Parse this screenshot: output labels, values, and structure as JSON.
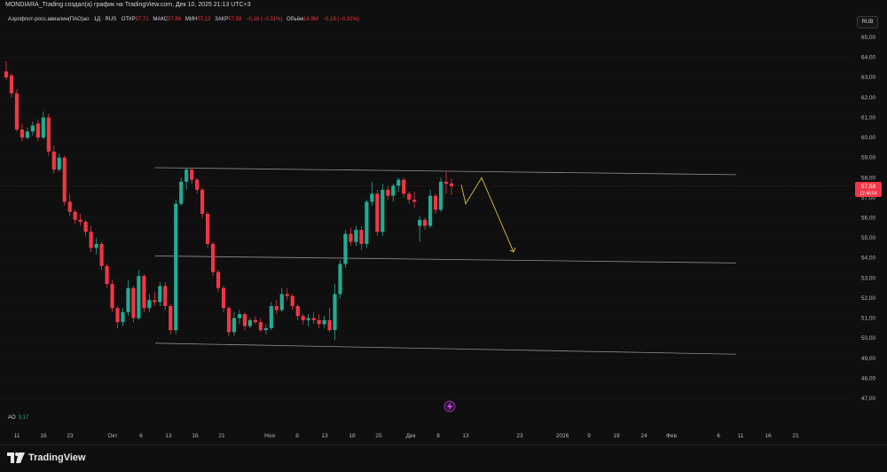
{
  "header": {
    "author_line": "MONDIARA_Trading создал(а) график на TradingView.com, Дек 10, 2025 21:13 UTC+3"
  },
  "legend": {
    "symbol": "Аэрофлот-росс.авиалин(ПАО)ао · 1Д · RUS",
    "open_label": "ОТКР",
    "open_value": "57,71",
    "high_label": "МАКС",
    "high_value": "57,96",
    "low_label": "МИН",
    "low_value": "57,13",
    "close_label": "ЗАКР",
    "close_value": "57,58",
    "change_value": "−0,18 (−0,31%)",
    "volume_label": "Объём",
    "volume_value": "14,9M",
    "volume_change": "−0,18 (−0,31%)"
  },
  "currency": "RUB",
  "indicator": {
    "name": "AO",
    "value": "3,17"
  },
  "brand": {
    "name": "TradingView"
  },
  "colors": {
    "up": "#22ab94",
    "down": "#f23645",
    "line": "#8f8f8f",
    "arrow": "#c9b43a",
    "price_tag": "#f23645"
  },
  "chart_data": {
    "type": "candlestick",
    "y_axis": {
      "ticks": [
        "65,00",
        "64,00",
        "63,00",
        "62,00",
        "61,00",
        "60,00",
        "59,00",
        "58,00",
        "57,00",
        "56,00",
        "55,00",
        "54,00",
        "53,00",
        "52,00",
        "51,00",
        "50,00",
        "49,00",
        "48,00",
        "47,00"
      ],
      "range": [
        46.4,
        65.5
      ]
    },
    "x_axis": {
      "ticks": [
        "11",
        "16",
        "23",
        "Окт",
        "6",
        "13",
        "16",
        "21",
        "Ноя",
        "8",
        "13",
        "18",
        "25",
        "Дек",
        "8",
        "13",
        "23",
        "2026",
        "9",
        "19",
        "24",
        "Фев",
        "6",
        "11",
        "16",
        "21"
      ]
    },
    "last_price": {
      "value": "57,58",
      "countdown": "12:46:54"
    },
    "candles": [
      {
        "o": 63.3,
        "h": 63.8,
        "l": 62.9,
        "c": 63.0
      },
      {
        "o": 63.1,
        "h": 63.2,
        "l": 62.0,
        "c": 62.2
      },
      {
        "o": 62.2,
        "h": 62.4,
        "l": 60.3,
        "c": 60.4
      },
      {
        "o": 60.4,
        "h": 60.7,
        "l": 59.8,
        "c": 60.0
      },
      {
        "o": 60.0,
        "h": 60.5,
        "l": 59.9,
        "c": 60.3
      },
      {
        "o": 60.3,
        "h": 60.8,
        "l": 60.1,
        "c": 60.6
      },
      {
        "o": 60.7,
        "h": 60.9,
        "l": 59.8,
        "c": 60.0
      },
      {
        "o": 60.0,
        "h": 61.3,
        "l": 59.9,
        "c": 61.0
      },
      {
        "o": 61.0,
        "h": 61.2,
        "l": 59.1,
        "c": 59.3
      },
      {
        "o": 59.3,
        "h": 59.6,
        "l": 58.2,
        "c": 58.4
      },
      {
        "o": 58.4,
        "h": 59.2,
        "l": 58.3,
        "c": 59.0
      },
      {
        "o": 59.0,
        "h": 59.1,
        "l": 56.6,
        "c": 56.8
      },
      {
        "o": 56.8,
        "h": 57.2,
        "l": 56.1,
        "c": 56.3
      },
      {
        "o": 56.3,
        "h": 56.4,
        "l": 55.7,
        "c": 55.9
      },
      {
        "o": 55.9,
        "h": 56.2,
        "l": 55.6,
        "c": 55.8
      },
      {
        "o": 55.8,
        "h": 55.9,
        "l": 55.1,
        "c": 55.3
      },
      {
        "o": 55.3,
        "h": 55.6,
        "l": 54.3,
        "c": 54.5
      },
      {
        "o": 54.5,
        "h": 55.0,
        "l": 54.2,
        "c": 54.7
      },
      {
        "o": 54.7,
        "h": 54.8,
        "l": 53.4,
        "c": 53.6
      },
      {
        "o": 53.6,
        "h": 53.7,
        "l": 52.5,
        "c": 52.7
      },
      {
        "o": 52.7,
        "h": 52.9,
        "l": 51.3,
        "c": 51.5
      },
      {
        "o": 51.5,
        "h": 51.6,
        "l": 50.5,
        "c": 50.8
      },
      {
        "o": 50.8,
        "h": 51.5,
        "l": 50.6,
        "c": 51.3
      },
      {
        "o": 51.3,
        "h": 52.9,
        "l": 51.1,
        "c": 52.5
      },
      {
        "o": 52.5,
        "h": 52.6,
        "l": 50.8,
        "c": 51.0
      },
      {
        "o": 51.0,
        "h": 53.4,
        "l": 50.9,
        "c": 53.1
      },
      {
        "o": 53.1,
        "h": 53.2,
        "l": 51.3,
        "c": 51.5
      },
      {
        "o": 51.5,
        "h": 52.2,
        "l": 51.3,
        "c": 51.9
      },
      {
        "o": 51.9,
        "h": 52.3,
        "l": 51.6,
        "c": 51.8
      },
      {
        "o": 51.8,
        "h": 52.8,
        "l": 51.6,
        "c": 52.6
      },
      {
        "o": 52.6,
        "h": 52.8,
        "l": 51.4,
        "c": 51.6
      },
      {
        "o": 51.6,
        "h": 51.7,
        "l": 50.2,
        "c": 50.4
      },
      {
        "o": 50.4,
        "h": 56.9,
        "l": 50.2,
        "c": 56.7
      },
      {
        "o": 56.7,
        "h": 58.0,
        "l": 56.6,
        "c": 57.8
      },
      {
        "o": 57.8,
        "h": 58.5,
        "l": 57.4,
        "c": 58.4
      },
      {
        "o": 58.4,
        "h": 58.5,
        "l": 57.7,
        "c": 57.9
      },
      {
        "o": 57.9,
        "h": 58.0,
        "l": 57.2,
        "c": 57.4
      },
      {
        "o": 57.4,
        "h": 57.5,
        "l": 56.0,
        "c": 56.2
      },
      {
        "o": 56.2,
        "h": 56.3,
        "l": 54.5,
        "c": 54.7
      },
      {
        "o": 54.7,
        "h": 54.8,
        "l": 53.1,
        "c": 53.3
      },
      {
        "o": 53.3,
        "h": 53.4,
        "l": 52.3,
        "c": 52.5
      },
      {
        "o": 52.5,
        "h": 52.6,
        "l": 51.3,
        "c": 51.5
      },
      {
        "o": 51.5,
        "h": 51.6,
        "l": 50.1,
        "c": 50.3
      },
      {
        "o": 50.3,
        "h": 51.3,
        "l": 50.1,
        "c": 51.0
      },
      {
        "o": 51.0,
        "h": 51.4,
        "l": 50.7,
        "c": 51.2
      },
      {
        "o": 51.2,
        "h": 51.3,
        "l": 50.4,
        "c": 50.6
      },
      {
        "o": 50.6,
        "h": 51.0,
        "l": 50.5,
        "c": 50.9
      },
      {
        "o": 50.9,
        "h": 51.1,
        "l": 50.7,
        "c": 50.8
      },
      {
        "o": 50.8,
        "h": 51.0,
        "l": 50.3,
        "c": 50.4
      },
      {
        "o": 50.4,
        "h": 50.7,
        "l": 50.2,
        "c": 50.5
      },
      {
        "o": 50.5,
        "h": 51.8,
        "l": 50.4,
        "c": 51.6
      },
      {
        "o": 51.6,
        "h": 51.9,
        "l": 51.2,
        "c": 51.4
      },
      {
        "o": 51.4,
        "h": 52.5,
        "l": 51.3,
        "c": 52.2
      },
      {
        "o": 52.2,
        "h": 52.5,
        "l": 51.9,
        "c": 52.1
      },
      {
        "o": 52.1,
        "h": 52.2,
        "l": 51.4,
        "c": 51.6
      },
      {
        "o": 51.6,
        "h": 51.7,
        "l": 50.9,
        "c": 51.1
      },
      {
        "o": 51.1,
        "h": 51.2,
        "l": 50.7,
        "c": 50.9
      },
      {
        "o": 50.9,
        "h": 51.2,
        "l": 50.6,
        "c": 51.0
      },
      {
        "o": 51.0,
        "h": 51.3,
        "l": 50.7,
        "c": 50.9
      },
      {
        "o": 50.9,
        "h": 51.2,
        "l": 50.5,
        "c": 50.7
      },
      {
        "o": 50.7,
        "h": 51.1,
        "l": 50.5,
        "c": 50.9
      },
      {
        "o": 50.9,
        "h": 51.5,
        "l": 50.3,
        "c": 50.4
      },
      {
        "o": 50.4,
        "h": 52.7,
        "l": 49.9,
        "c": 52.2
      },
      {
        "o": 52.2,
        "h": 53.9,
        "l": 52.0,
        "c": 53.7
      },
      {
        "o": 53.7,
        "h": 55.4,
        "l": 53.5,
        "c": 55.2
      },
      {
        "o": 55.2,
        "h": 55.5,
        "l": 54.6,
        "c": 54.8
      },
      {
        "o": 54.8,
        "h": 55.6,
        "l": 54.6,
        "c": 55.4
      },
      {
        "o": 55.4,
        "h": 55.6,
        "l": 54.4,
        "c": 54.7
      },
      {
        "o": 54.7,
        "h": 56.9,
        "l": 54.5,
        "c": 56.8
      },
      {
        "o": 56.8,
        "h": 57.8,
        "l": 56.6,
        "c": 57.2
      },
      {
        "o": 57.2,
        "h": 57.4,
        "l": 55.1,
        "c": 55.3
      },
      {
        "o": 55.3,
        "h": 57.7,
        "l": 55.1,
        "c": 57.4
      },
      {
        "o": 57.4,
        "h": 57.6,
        "l": 56.9,
        "c": 57.1
      },
      {
        "o": 57.1,
        "h": 57.7,
        "l": 56.8,
        "c": 57.6
      },
      {
        "o": 57.6,
        "h": 58.0,
        "l": 57.3,
        "c": 57.9
      },
      {
        "o": 57.9,
        "h": 58.0,
        "l": 57.0,
        "c": 57.2
      },
      {
        "o": 57.2,
        "h": 57.3,
        "l": 56.7,
        "c": 56.9
      },
      {
        "o": 56.9,
        "h": 57.3,
        "l": 56.5,
        "c": 56.8
      },
      {
        "o": 55.6,
        "h": 56.1,
        "l": 54.8,
        "c": 55.9
      },
      {
        "o": 55.9,
        "h": 56.0,
        "l": 55.4,
        "c": 55.6
      },
      {
        "o": 55.6,
        "h": 57.4,
        "l": 55.5,
        "c": 57.1
      },
      {
        "o": 57.1,
        "h": 57.2,
        "l": 56.2,
        "c": 56.4
      },
      {
        "o": 56.4,
        "h": 58.0,
        "l": 56.3,
        "c": 57.8
      },
      {
        "o": 57.8,
        "h": 58.3,
        "l": 57.2,
        "c": 57.7
      },
      {
        "o": 57.71,
        "h": 57.96,
        "l": 57.13,
        "c": 57.58
      }
    ],
    "trendlines": [
      {
        "x0": 175,
        "y0": 58.5,
        "x1": 830,
        "y1": 58.15
      },
      {
        "x0": 175,
        "y0": 54.1,
        "x1": 830,
        "y1": 53.75
      },
      {
        "x0": 175,
        "y0": 49.75,
        "x1": 830,
        "y1": 49.2
      }
    ],
    "projection": [
      {
        "x": 520,
        "y": 57.65
      },
      {
        "x": 525,
        "y": 56.7
      },
      {
        "x": 543,
        "y": 58.0
      },
      {
        "x": 579,
        "y": 54.3
      }
    ]
  }
}
